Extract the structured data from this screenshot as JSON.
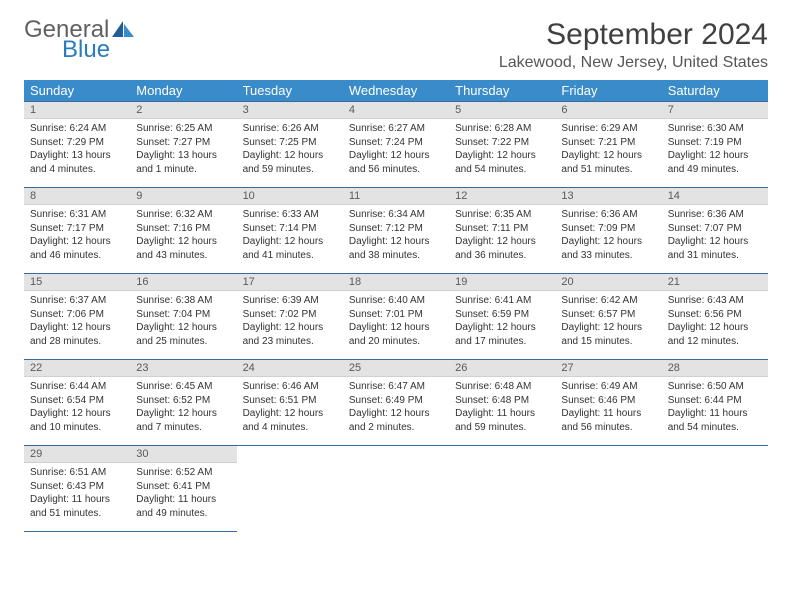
{
  "logo": {
    "text1": "General",
    "text2": "Blue"
  },
  "title": "September 2024",
  "location": "Lakewood, New Jersey, United States",
  "colors": {
    "header_bg": "#3a8bc9",
    "header_text": "#ffffff",
    "cell_border": "#3a6a9a",
    "daynum_bg": "#e3e3e3",
    "logo_blue": "#2b7bbf",
    "logo_gray": "#616161"
  },
  "weekdays": [
    "Sunday",
    "Monday",
    "Tuesday",
    "Wednesday",
    "Thursday",
    "Friday",
    "Saturday"
  ],
  "weeks": [
    [
      {
        "n": "1",
        "sunrise": "Sunrise: 6:24 AM",
        "sunset": "Sunset: 7:29 PM",
        "daylight": "Daylight: 13 hours and 4 minutes."
      },
      {
        "n": "2",
        "sunrise": "Sunrise: 6:25 AM",
        "sunset": "Sunset: 7:27 PM",
        "daylight": "Daylight: 13 hours and 1 minute."
      },
      {
        "n": "3",
        "sunrise": "Sunrise: 6:26 AM",
        "sunset": "Sunset: 7:25 PM",
        "daylight": "Daylight: 12 hours and 59 minutes."
      },
      {
        "n": "4",
        "sunrise": "Sunrise: 6:27 AM",
        "sunset": "Sunset: 7:24 PM",
        "daylight": "Daylight: 12 hours and 56 minutes."
      },
      {
        "n": "5",
        "sunrise": "Sunrise: 6:28 AM",
        "sunset": "Sunset: 7:22 PM",
        "daylight": "Daylight: 12 hours and 54 minutes."
      },
      {
        "n": "6",
        "sunrise": "Sunrise: 6:29 AM",
        "sunset": "Sunset: 7:21 PM",
        "daylight": "Daylight: 12 hours and 51 minutes."
      },
      {
        "n": "7",
        "sunrise": "Sunrise: 6:30 AM",
        "sunset": "Sunset: 7:19 PM",
        "daylight": "Daylight: 12 hours and 49 minutes."
      }
    ],
    [
      {
        "n": "8",
        "sunrise": "Sunrise: 6:31 AM",
        "sunset": "Sunset: 7:17 PM",
        "daylight": "Daylight: 12 hours and 46 minutes."
      },
      {
        "n": "9",
        "sunrise": "Sunrise: 6:32 AM",
        "sunset": "Sunset: 7:16 PM",
        "daylight": "Daylight: 12 hours and 43 minutes."
      },
      {
        "n": "10",
        "sunrise": "Sunrise: 6:33 AM",
        "sunset": "Sunset: 7:14 PM",
        "daylight": "Daylight: 12 hours and 41 minutes."
      },
      {
        "n": "11",
        "sunrise": "Sunrise: 6:34 AM",
        "sunset": "Sunset: 7:12 PM",
        "daylight": "Daylight: 12 hours and 38 minutes."
      },
      {
        "n": "12",
        "sunrise": "Sunrise: 6:35 AM",
        "sunset": "Sunset: 7:11 PM",
        "daylight": "Daylight: 12 hours and 36 minutes."
      },
      {
        "n": "13",
        "sunrise": "Sunrise: 6:36 AM",
        "sunset": "Sunset: 7:09 PM",
        "daylight": "Daylight: 12 hours and 33 minutes."
      },
      {
        "n": "14",
        "sunrise": "Sunrise: 6:36 AM",
        "sunset": "Sunset: 7:07 PM",
        "daylight": "Daylight: 12 hours and 31 minutes."
      }
    ],
    [
      {
        "n": "15",
        "sunrise": "Sunrise: 6:37 AM",
        "sunset": "Sunset: 7:06 PM",
        "daylight": "Daylight: 12 hours and 28 minutes."
      },
      {
        "n": "16",
        "sunrise": "Sunrise: 6:38 AM",
        "sunset": "Sunset: 7:04 PM",
        "daylight": "Daylight: 12 hours and 25 minutes."
      },
      {
        "n": "17",
        "sunrise": "Sunrise: 6:39 AM",
        "sunset": "Sunset: 7:02 PM",
        "daylight": "Daylight: 12 hours and 23 minutes."
      },
      {
        "n": "18",
        "sunrise": "Sunrise: 6:40 AM",
        "sunset": "Sunset: 7:01 PM",
        "daylight": "Daylight: 12 hours and 20 minutes."
      },
      {
        "n": "19",
        "sunrise": "Sunrise: 6:41 AM",
        "sunset": "Sunset: 6:59 PM",
        "daylight": "Daylight: 12 hours and 17 minutes."
      },
      {
        "n": "20",
        "sunrise": "Sunrise: 6:42 AM",
        "sunset": "Sunset: 6:57 PM",
        "daylight": "Daylight: 12 hours and 15 minutes."
      },
      {
        "n": "21",
        "sunrise": "Sunrise: 6:43 AM",
        "sunset": "Sunset: 6:56 PM",
        "daylight": "Daylight: 12 hours and 12 minutes."
      }
    ],
    [
      {
        "n": "22",
        "sunrise": "Sunrise: 6:44 AM",
        "sunset": "Sunset: 6:54 PM",
        "daylight": "Daylight: 12 hours and 10 minutes."
      },
      {
        "n": "23",
        "sunrise": "Sunrise: 6:45 AM",
        "sunset": "Sunset: 6:52 PM",
        "daylight": "Daylight: 12 hours and 7 minutes."
      },
      {
        "n": "24",
        "sunrise": "Sunrise: 6:46 AM",
        "sunset": "Sunset: 6:51 PM",
        "daylight": "Daylight: 12 hours and 4 minutes."
      },
      {
        "n": "25",
        "sunrise": "Sunrise: 6:47 AM",
        "sunset": "Sunset: 6:49 PM",
        "daylight": "Daylight: 12 hours and 2 minutes."
      },
      {
        "n": "26",
        "sunrise": "Sunrise: 6:48 AM",
        "sunset": "Sunset: 6:48 PM",
        "daylight": "Daylight: 11 hours and 59 minutes."
      },
      {
        "n": "27",
        "sunrise": "Sunrise: 6:49 AM",
        "sunset": "Sunset: 6:46 PM",
        "daylight": "Daylight: 11 hours and 56 minutes."
      },
      {
        "n": "28",
        "sunrise": "Sunrise: 6:50 AM",
        "sunset": "Sunset: 6:44 PM",
        "daylight": "Daylight: 11 hours and 54 minutes."
      }
    ],
    [
      {
        "n": "29",
        "sunrise": "Sunrise: 6:51 AM",
        "sunset": "Sunset: 6:43 PM",
        "daylight": "Daylight: 11 hours and 51 minutes."
      },
      {
        "n": "30",
        "sunrise": "Sunrise: 6:52 AM",
        "sunset": "Sunset: 6:41 PM",
        "daylight": "Daylight: 11 hours and 49 minutes."
      },
      null,
      null,
      null,
      null,
      null
    ]
  ]
}
